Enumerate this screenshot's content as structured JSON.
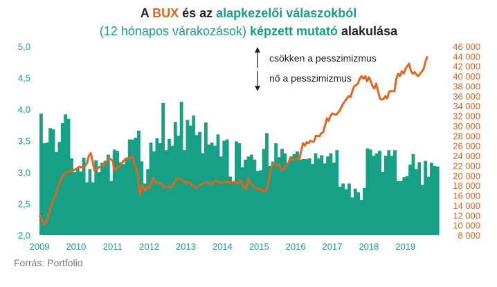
{
  "title": {
    "line1": [
      {
        "text": "A ",
        "cls": "bold dark"
      },
      {
        "text": "BUX",
        "cls": "bold orange"
      },
      {
        "text": " és az ",
        "cls": "bold dark"
      },
      {
        "text": "alapkezelői válaszokból",
        "cls": "bold green"
      }
    ],
    "line2": [
      {
        "text": "(12 hónapos várakozások) ",
        "cls": "green"
      },
      {
        "text": "képzett mutató",
        "cls": "bold green"
      },
      {
        "text": " alakulása",
        "cls": "bold dark"
      }
    ]
  },
  "annotations": {
    "up": "csökken a pesszimizmus",
    "down": "nő a pesszimizmus"
  },
  "source": "Forrás: Portfolio",
  "colors": {
    "bars": "#16a085",
    "line": "#e3641f",
    "left_axis": "#16a085",
    "right_axis": "#e3641f",
    "years": "#16a085"
  },
  "chart_data": {
    "type": "bar+line",
    "x_ticks": [
      "2009",
      "2010",
      "2011",
      "2012",
      "2013",
      "2014",
      "2015",
      "2016",
      "2017",
      "2018",
      "2019"
    ],
    "left_axis": {
      "ylim": [
        2.0,
        5.0
      ],
      "ticks": [
        "2,0",
        "2,5",
        "3,0",
        "3,5",
        "4,0",
        "4,5",
        "5,0"
      ]
    },
    "right_axis": {
      "ylim": [
        8000,
        46000
      ],
      "ticks": [
        "8 000",
        "10 000",
        "12 000",
        "14 000",
        "16 000",
        "18 000",
        "20 000",
        "22 000",
        "24 000",
        "26 000",
        "28 000",
        "30 000",
        "32 000",
        "34 000",
        "36 000",
        "38 000",
        "40 000",
        "42 000",
        "44 000",
        "46 000"
      ]
    },
    "bars": {
      "name": "alapkezelői mutató",
      "x_start": 2009.0,
      "x_step": 0.08333,
      "values": [
        3.93,
        3.46,
        3.47,
        3.7,
        3.68,
        3.32,
        3.48,
        3.78,
        3.92,
        3.85,
        3.22,
        3.0,
        3.07,
        3.01,
        3.23,
        2.84,
        3.05,
        2.84,
        3.19,
        3.0,
        3.15,
        3.18,
        3.28,
        2.86,
        3.36,
        3.34,
        3.16,
        3.13,
        3.23,
        3.52,
        3.52,
        3.55,
        3.66,
        3.17,
        2.82,
        3.05,
        3.47,
        3.33,
        3.54,
        3.46,
        4.1,
        3.35,
        3.53,
        3.42,
        3.8,
        3.58,
        4.12,
        3.35,
        3.83,
        3.74,
        3.9,
        3.59,
        3.64,
        3.3,
        3.79,
        3.44,
        3.47,
        3.42,
        3.6,
        3.25,
        3.5,
        3.52,
        2.93,
        2.85,
        3.49,
        3.46,
        3.08,
        3.2,
        3.25,
        3.28,
        3.2,
        3.02,
        3.03,
        3.37,
        3.62,
        3.1,
        3.17,
        3.46,
        3.24,
        3.37,
        3.3,
        3.14,
        3.25,
        3.29,
        3.33,
        3.2,
        3.21,
        3.21,
        3.22,
        3.13,
        3.3,
        3.22,
        3.27,
        3.14,
        3.25,
        3.3,
        3.15,
        3.35,
        2.77,
        2.82,
        2.73,
        2.82,
        2.6,
        2.74,
        2.68,
        2.56,
        2.75,
        3.38,
        3.36,
        3.26,
        3.3,
        3.34,
        3.0,
        3.26,
        3.35,
        3.26,
        3.35,
        2.86,
        2.86,
        2.92,
        2.94,
        3.12,
        3.29,
        3.05,
        3.16,
        2.8,
        3.18,
        2.93,
        3.15,
        3.1,
        3.09
      ]
    },
    "line": {
      "name": "BUX",
      "points": [
        [
          2009.0,
          12000
        ],
        [
          2009.05,
          11200
        ],
        [
          2009.1,
          10600
        ],
        [
          2009.15,
          10200
        ],
        [
          2009.2,
          10800
        ],
        [
          2009.3,
          13500
        ],
        [
          2009.4,
          15500
        ],
        [
          2009.5,
          17500
        ],
        [
          2009.6,
          19500
        ],
        [
          2009.7,
          20500
        ],
        [
          2009.8,
          20800
        ],
        [
          2009.9,
          21000
        ],
        [
          2010.0,
          21300
        ],
        [
          2010.1,
          21800
        ],
        [
          2010.2,
          21500
        ],
        [
          2010.3,
          22500
        ],
        [
          2010.35,
          24000
        ],
        [
          2010.4,
          24500
        ],
        [
          2010.45,
          23000
        ],
        [
          2010.5,
          21000
        ],
        [
          2010.6,
          21500
        ],
        [
          2010.7,
          22000
        ],
        [
          2010.8,
          22500
        ],
        [
          2010.9,
          23500
        ],
        [
          2011.0,
          23000
        ],
        [
          2011.05,
          21000
        ],
        [
          2011.1,
          21500
        ],
        [
          2011.2,
          22000
        ],
        [
          2011.3,
          23000
        ],
        [
          2011.4,
          23500
        ],
        [
          2011.5,
          23500
        ],
        [
          2011.55,
          24000
        ],
        [
          2011.6,
          22000
        ],
        [
          2011.65,
          21500
        ],
        [
          2011.7,
          19000
        ],
        [
          2011.75,
          16000
        ],
        [
          2011.8,
          18000
        ],
        [
          2011.9,
          17000
        ],
        [
          2011.95,
          17800
        ],
        [
          2012.0,
          17500
        ],
        [
          2012.05,
          18500
        ],
        [
          2012.1,
          19500
        ],
        [
          2012.2,
          18500
        ],
        [
          2012.3,
          18500
        ],
        [
          2012.4,
          17500
        ],
        [
          2012.5,
          17800
        ],
        [
          2012.6,
          17500
        ],
        [
          2012.7,
          18800
        ],
        [
          2012.8,
          19500
        ],
        [
          2012.9,
          19000
        ],
        [
          2013.0,
          18500
        ],
        [
          2013.1,
          18700
        ],
        [
          2013.2,
          17800
        ],
        [
          2013.3,
          17500
        ],
        [
          2013.4,
          18200
        ],
        [
          2013.5,
          18500
        ],
        [
          2013.6,
          18600
        ],
        [
          2013.7,
          18200
        ],
        [
          2013.8,
          19000
        ],
        [
          2013.9,
          18700
        ],
        [
          2014.0,
          18500
        ],
        [
          2014.1,
          18800
        ],
        [
          2014.2,
          18600
        ],
        [
          2014.3,
          18700
        ],
        [
          2014.4,
          18400
        ],
        [
          2014.5,
          19000
        ],
        [
          2014.55,
          18000
        ],
        [
          2014.6,
          17500
        ],
        [
          2014.65,
          17300
        ],
        [
          2014.7,
          19500
        ],
        [
          2014.75,
          18500
        ],
        [
          2014.8,
          18200
        ],
        [
          2014.9,
          17500
        ],
        [
          2015.0,
          17200
        ],
        [
          2015.05,
          17300
        ],
        [
          2015.1,
          17000
        ],
        [
          2015.15,
          16800
        ],
        [
          2015.2,
          17200
        ],
        [
          2015.25,
          18500
        ],
        [
          2015.3,
          20500
        ],
        [
          2015.35,
          22000
        ],
        [
          2015.4,
          22500
        ],
        [
          2015.5,
          22000
        ],
        [
          2015.55,
          22300
        ],
        [
          2015.6,
          21000
        ],
        [
          2015.65,
          21200
        ],
        [
          2015.7,
          21500
        ],
        [
          2015.8,
          22500
        ],
        [
          2015.85,
          23500
        ],
        [
          2015.9,
          23200
        ],
        [
          2015.95,
          23300
        ],
        [
          2016.0,
          23500
        ],
        [
          2016.1,
          23200
        ],
        [
          2016.15,
          25000
        ],
        [
          2016.2,
          26500
        ],
        [
          2016.25,
          26000
        ],
        [
          2016.3,
          26700
        ],
        [
          2016.35,
          26500
        ],
        [
          2016.4,
          27000
        ],
        [
          2016.45,
          26800
        ],
        [
          2016.5,
          26800
        ],
        [
          2016.55,
          28000
        ],
        [
          2016.6,
          28000
        ],
        [
          2016.65,
          27900
        ],
        [
          2016.7,
          28500
        ],
        [
          2016.75,
          28700
        ],
        [
          2016.8,
          30000
        ],
        [
          2016.85,
          31500
        ],
        [
          2016.9,
          31000
        ],
        [
          2016.95,
          32000
        ],
        [
          2017.0,
          32500
        ],
        [
          2017.1,
          32200
        ],
        [
          2017.2,
          33000
        ],
        [
          2017.3,
          34500
        ],
        [
          2017.4,
          35500
        ],
        [
          2017.45,
          36000
        ],
        [
          2017.5,
          35800
        ],
        [
          2017.55,
          37000
        ],
        [
          2017.6,
          38000
        ],
        [
          2017.65,
          38200
        ],
        [
          2017.7,
          38500
        ],
        [
          2017.75,
          39500
        ],
        [
          2017.8,
          40000
        ],
        [
          2017.85,
          39500
        ],
        [
          2017.9,
          40000
        ],
        [
          2017.95,
          39000
        ],
        [
          2018.0,
          39800
        ],
        [
          2018.05,
          39000
        ],
        [
          2018.1,
          38000
        ],
        [
          2018.15,
          37500
        ],
        [
          2018.2,
          38500
        ],
        [
          2018.25,
          37000
        ],
        [
          2018.3,
          35500
        ],
        [
          2018.35,
          35300
        ],
        [
          2018.4,
          35400
        ],
        [
          2018.45,
          36000
        ],
        [
          2018.5,
          35500
        ],
        [
          2018.55,
          36800
        ],
        [
          2018.6,
          37000
        ],
        [
          2018.65,
          37000
        ],
        [
          2018.7,
          37000
        ],
        [
          2018.75,
          39500
        ],
        [
          2018.8,
          40500
        ],
        [
          2018.85,
          40000
        ],
        [
          2018.9,
          41000
        ],
        [
          2018.95,
          40500
        ],
        [
          2019.0,
          41500
        ],
        [
          2019.05,
          42000
        ],
        [
          2019.1,
          42500
        ],
        [
          2019.15,
          41000
        ],
        [
          2019.2,
          40500
        ],
        [
          2019.25,
          40800
        ],
        [
          2019.3,
          40300
        ],
        [
          2019.35,
          40000
        ],
        [
          2019.4,
          40500
        ],
        [
          2019.45,
          41000
        ],
        [
          2019.5,
          41500
        ],
        [
          2019.55,
          43000
        ],
        [
          2019.6,
          44000
        ]
      ]
    }
  }
}
